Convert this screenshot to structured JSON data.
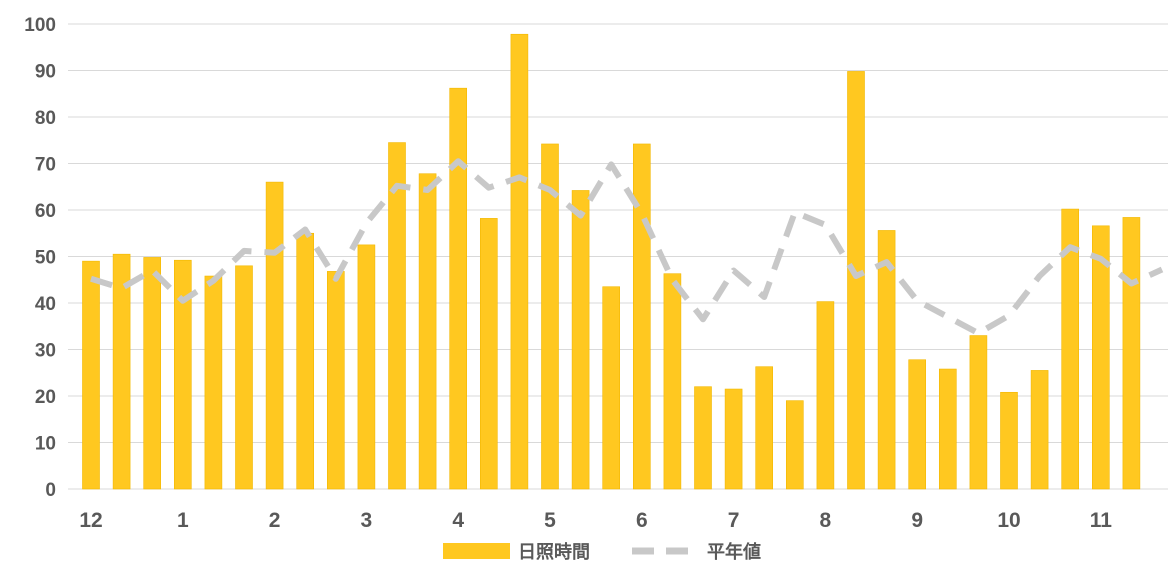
{
  "chart_data": {
    "type": "bar",
    "title": "",
    "xlabel": "",
    "ylabel": "",
    "ylim": [
      0,
      100
    ],
    "yticks": [
      0,
      10,
      20,
      30,
      40,
      50,
      60,
      70,
      80,
      90,
      100
    ],
    "month_ticks": [
      {
        "label": "12",
        "index": 0
      },
      {
        "label": "1",
        "index": 3
      },
      {
        "label": "2",
        "index": 6
      },
      {
        "label": "3",
        "index": 9
      },
      {
        "label": "4",
        "index": 12
      },
      {
        "label": "5",
        "index": 15
      },
      {
        "label": "6",
        "index": 18
      },
      {
        "label": "7",
        "index": 21
      },
      {
        "label": "8",
        "index": 24
      },
      {
        "label": "9",
        "index": 27
      },
      {
        "label": "10",
        "index": 30
      },
      {
        "label": "11",
        "index": 33
      }
    ],
    "grid": true,
    "legend_position": "bottom",
    "series": [
      {
        "name": "日照時間",
        "type": "bar",
        "color": "#FFC820",
        "values": [
          49,
          50.5,
          49.8,
          49.2,
          45.8,
          48,
          66,
          55,
          46.8,
          52.5,
          74.5,
          67.8,
          86.2,
          58.2,
          97.8,
          74.2,
          64.2,
          43.5,
          74.2,
          46.3,
          22,
          21.5,
          26.3,
          19,
          40.3,
          89.8,
          55.6,
          27.8,
          25.8,
          33,
          20.8,
          25.5,
          60.2,
          56.6,
          58.4
        ]
      },
      {
        "name": "平年値",
        "type": "line",
        "style": "dashed",
        "color": "#C8C8C8",
        "values": [
          45.2,
          43.2,
          47,
          40.5,
          44.8,
          51.2,
          50.8,
          55.8,
          45.2,
          57.2,
          65.2,
          64.3,
          70.5,
          64.8,
          67,
          64.3,
          58.8,
          69.8,
          59.2,
          45,
          36.5,
          47,
          41.3,
          59.5,
          56.8,
          45.8,
          48.8,
          40.5,
          37,
          33.5,
          37.3,
          45.8,
          52,
          49.5,
          44.2,
          47.2
        ]
      }
    ]
  }
}
